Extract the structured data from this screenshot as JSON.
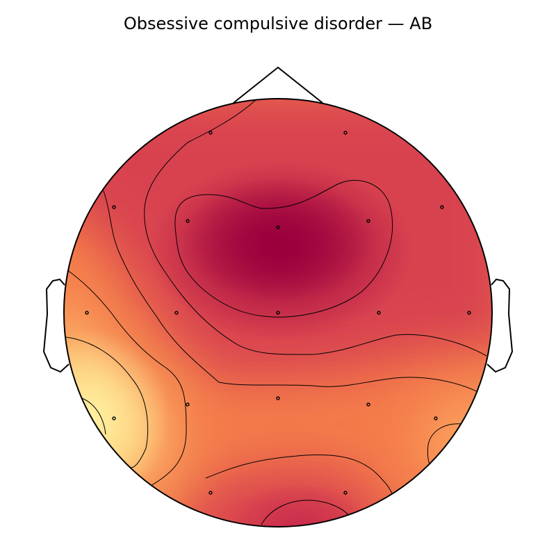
{
  "title": "Obsessive compulsive disorder — AB",
  "colormap": {
    "name": "Spectral (partial)",
    "high": "#9b003d",
    "mid_high": "#d8424f",
    "mid": "#f47b4a",
    "mid_low": "#fca45e",
    "low": "#fee993"
  },
  "electrodes": {
    "count": 19,
    "marker_color": "#000000"
  }
}
